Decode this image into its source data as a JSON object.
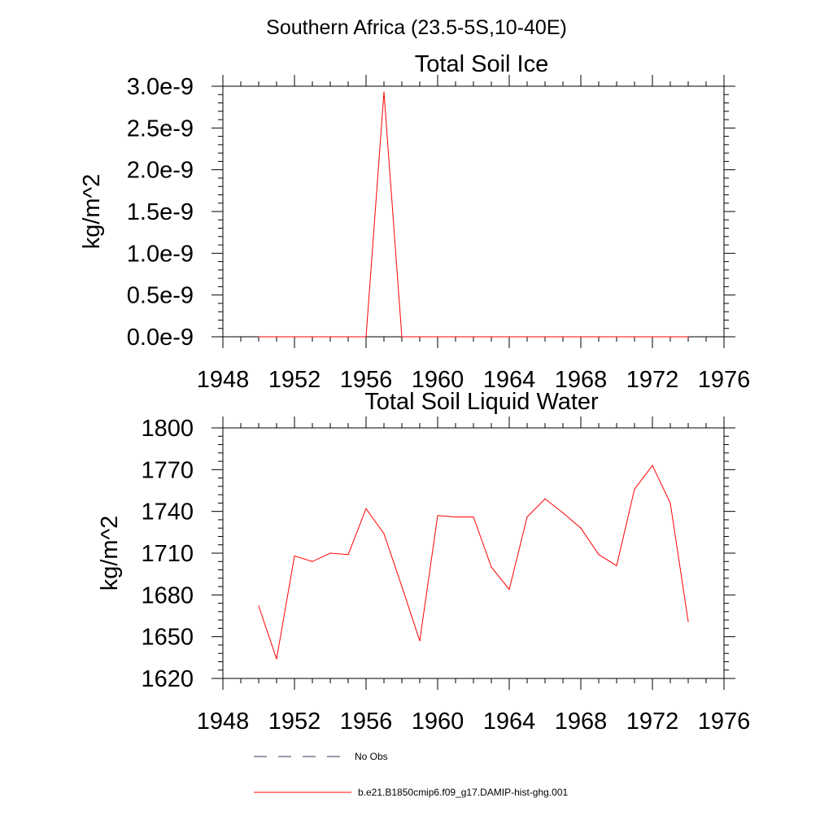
{
  "suptitle": "Southern Africa (23.5-5S,10-40E)",
  "chart_data": [
    {
      "type": "line",
      "title": "Total Soil Ice",
      "xlabel": "",
      "ylabel": "kg/m^2",
      "xlim": [
        1948,
        1976
      ],
      "ylim": [
        0,
        3e-09
      ],
      "grid": false,
      "x_ticks": [
        1948,
        1952,
        1956,
        1960,
        1964,
        1968,
        1972,
        1976
      ],
      "x_tick_labels": [
        "1948",
        "1952",
        "1956",
        "1960",
        "1964",
        "1968",
        "1972",
        "1976"
      ],
      "y_ticks": [
        0,
        5e-10,
        1e-09,
        1.5e-09,
        2e-09,
        2.5e-09,
        3e-09
      ],
      "y_tick_labels": [
        "0.0e-9",
        "0.5e-9",
        "1.0e-9",
        "1.5e-9",
        "2.0e-9",
        "2.5e-9",
        "3.0e-9"
      ],
      "series": [
        {
          "name": "b.e21.B1850cmip6.f09_g17.DAMIP-hist-ghg.001",
          "color": "#ff0000",
          "x": [
            1950,
            1951,
            1952,
            1953,
            1954,
            1955,
            1956,
            1957,
            1958,
            1959,
            1960,
            1961,
            1962,
            1963,
            1964,
            1965,
            1966,
            1967,
            1968,
            1969,
            1970,
            1971,
            1972,
            1973,
            1974
          ],
          "y": [
            0,
            0,
            0,
            0,
            0,
            0,
            0,
            2.93e-09,
            0,
            0,
            0,
            0,
            0,
            0,
            0,
            0,
            0,
            0,
            0,
            0,
            0,
            0,
            0,
            0,
            0
          ]
        }
      ]
    },
    {
      "type": "line",
      "title": "Total Soil Liquid Water",
      "xlabel": "",
      "ylabel": "kg/m^2",
      "xlim": [
        1948,
        1976
      ],
      "ylim": [
        1620,
        1800
      ],
      "grid": false,
      "x_ticks": [
        1948,
        1952,
        1956,
        1960,
        1964,
        1968,
        1972,
        1976
      ],
      "x_tick_labels": [
        "1948",
        "1952",
        "1956",
        "1960",
        "1964",
        "1968",
        "1972",
        "1976"
      ],
      "y_ticks": [
        1620,
        1650,
        1680,
        1710,
        1740,
        1770,
        1800
      ],
      "y_tick_labels": [
        "1620",
        "1650",
        "1680",
        "1710",
        "1740",
        "1770",
        "1800"
      ],
      "series": [
        {
          "name": "b.e21.B1850cmip6.f09_g17.DAMIP-hist-ghg.001",
          "color": "#ff0000",
          "x": [
            1950,
            1951,
            1952,
            1953,
            1954,
            1955,
            1956,
            1957,
            1958,
            1959,
            1960,
            1961,
            1962,
            1963,
            1964,
            1965,
            1966,
            1967,
            1968,
            1969,
            1970,
            1971,
            1972,
            1973,
            1974
          ],
          "y": [
            1672,
            1634,
            1708,
            1704,
            1710,
            1709,
            1742,
            1724,
            1686,
            1647,
            1737,
            1736,
            1736,
            1700,
            1684,
            1736,
            1749,
            1739,
            1728,
            1709,
            1701,
            1756,
            1773,
            1746,
            1661
          ]
        }
      ]
    }
  ],
  "legend": {
    "placement": "bottom",
    "entries": [
      {
        "label": "No Obs",
        "color": "#3a3a5a",
        "style": "dashed"
      },
      {
        "label": "b.e21.B1850cmip6.f09_g17.DAMIP-hist-ghg.001",
        "color": "#ff0000",
        "style": "solid"
      }
    ]
  }
}
